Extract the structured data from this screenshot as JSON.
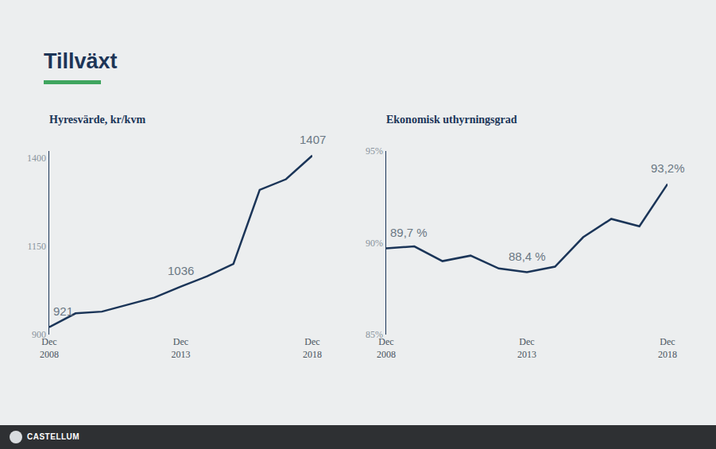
{
  "title": "Tillväxt",
  "footer": "CASTELLUM",
  "chart_data": [
    {
      "type": "line",
      "title": "Hyresvärde, kr/kvm",
      "categories": [
        "Dec 2008",
        null,
        null,
        null,
        null,
        "Dec 2013",
        null,
        null,
        null,
        null,
        "Dec 2018"
      ],
      "values": [
        921,
        960,
        965,
        985,
        1005,
        1036,
        1065,
        1100,
        1310,
        1340,
        1407
      ],
      "value_labels": [
        "921",
        null,
        null,
        null,
        null,
        "1036",
        null,
        null,
        null,
        null,
        "1407"
      ],
      "color": "#1b3558",
      "ylim": [
        900,
        1420
      ],
      "yticks": [
        900,
        1150,
        1400
      ],
      "grid": false
    },
    {
      "type": "line",
      "title": "Ekonomisk uthyrningsgrad",
      "categories": [
        "Dec 2008",
        null,
        null,
        null,
        null,
        "Dec 2013",
        null,
        null,
        null,
        null,
        "Dec 2018"
      ],
      "values": [
        89.7,
        89.8,
        89.0,
        89.3,
        88.6,
        88.4,
        88.7,
        90.3,
        91.3,
        90.9,
        93.2
      ],
      "value_labels": [
        "89,7 %",
        null,
        null,
        null,
        null,
        "88,4 %",
        null,
        null,
        null,
        null,
        "93,2%"
      ],
      "color": "#1b3558",
      "ylim": [
        85,
        95
      ],
      "yticks": [
        {
          "value": 85,
          "label": "85%"
        },
        {
          "value": 90,
          "label": "90%"
        },
        {
          "value": 95,
          "label": "95%"
        }
      ],
      "grid": false
    }
  ]
}
